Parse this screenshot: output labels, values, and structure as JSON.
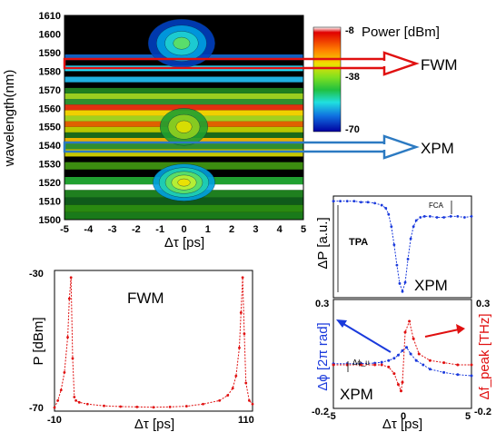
{
  "chart_data": [
    {
      "type": "heatmap",
      "title": "",
      "xlabel": "Δτ [ps]",
      "ylabel": "wavelength(nm)",
      "xlim": [
        -5,
        5
      ],
      "ylim": [
        1500,
        1610
      ],
      "x_ticks": [
        "-5",
        "-4",
        "-3",
        "-2",
        "-1",
        "0",
        "1",
        "2",
        "3",
        "4",
        "5"
      ],
      "y_ticks": [
        "1500",
        "1510",
        "1520",
        "1530",
        "1540",
        "1550",
        "1560",
        "1570",
        "1580",
        "1590",
        "1600",
        "1610"
      ],
      "colorbar": {
        "label": "Power [dBm]",
        "range": [
          -70,
          -8
        ],
        "ticks": [
          "-8",
          "-38",
          "-70"
        ]
      },
      "bands": [
        {
          "from": 1500,
          "to": 1504,
          "color": "#1a7a1a"
        },
        {
          "from": 1504,
          "to": 1508,
          "color": "#2a8a10"
        },
        {
          "from": 1508,
          "to": 1512,
          "color": "#0f5a1a"
        },
        {
          "from": 1512,
          "to": 1516,
          "color": "#1f7f1f"
        },
        {
          "from": 1516,
          "to": 1519,
          "color": "#ffffff"
        },
        {
          "from": 1519,
          "to": 1523,
          "color": "#20a030"
        },
        {
          "from": 1523,
          "to": 1527,
          "color": "#000000"
        },
        {
          "from": 1527,
          "to": 1531,
          "color": "#3c8c10"
        },
        {
          "from": 1531,
          "to": 1534,
          "color": "#000000"
        },
        {
          "from": 1534,
          "to": 1538,
          "color": "#c8c800"
        },
        {
          "from": 1538,
          "to": 1541,
          "color": "#2f8f2f"
        },
        {
          "from": 1541,
          "to": 1544,
          "color": "#e8b000"
        },
        {
          "from": 1544,
          "to": 1547,
          "color": "#1a6a1a"
        },
        {
          "from": 1547,
          "to": 1550,
          "color": "#b8c800"
        },
        {
          "from": 1550,
          "to": 1553,
          "color": "#e06000"
        },
        {
          "from": 1553,
          "to": 1556,
          "color": "#a0d020"
        },
        {
          "from": 1556,
          "to": 1559,
          "color": "#f0d000"
        },
        {
          "from": 1559,
          "to": 1562,
          "color": "#e03010"
        },
        {
          "from": 1562,
          "to": 1565,
          "color": "#2f8f2f"
        },
        {
          "from": 1565,
          "to": 1568,
          "color": "#9acd20"
        },
        {
          "from": 1568,
          "to": 1571,
          "color": "#1f7f1f"
        },
        {
          "from": 1571,
          "to": 1574,
          "color": "#000000"
        },
        {
          "from": 1574,
          "to": 1577,
          "color": "#20b0e0"
        },
        {
          "from": 1577,
          "to": 1580,
          "color": "#000000"
        },
        {
          "from": 1580,
          "to": 1583,
          "color": "#20e0ff"
        },
        {
          "from": 1583,
          "to": 1586,
          "color": "#000000"
        },
        {
          "from": 1586,
          "to": 1589,
          "color": "#1060c0"
        },
        {
          "from": 1589,
          "to": 1610,
          "color": "#000000"
        }
      ],
      "blobs": [
        {
          "cx": 0.0,
          "cy": 1520,
          "rx": 1.3,
          "ry": 10,
          "levels": [
            "#00a0e0",
            "#20d0b0",
            "#60e060",
            "#c0f030",
            "#f0e000"
          ]
        },
        {
          "cx": -0.1,
          "cy": 1595,
          "rx": 1.4,
          "ry": 13,
          "levels": [
            "#0040c0",
            "#00a0e0",
            "#20d0d0",
            "#60e060"
          ]
        },
        {
          "cx": 0.0,
          "cy": 1550,
          "rx": 1.0,
          "ry": 10,
          "levels": [
            "#20a030",
            "#90d020",
            "#e0e000"
          ]
        }
      ]
    },
    {
      "type": "line",
      "title": "",
      "xlabel": "Δτ [ps]",
      "ylabel": "P [dBm]",
      "xlim": [
        -10,
        110
      ],
      "ylim": [
        -70,
        -30
      ],
      "x_ticks": [
        "-10",
        "110"
      ],
      "y_ticks": [
        "-30",
        "-70"
      ],
      "annotation": "FWM",
      "series": [
        {
          "color": "#e01010",
          "x": [
            -10,
            -8,
            -6,
            -4,
            -2,
            -1,
            0,
            1,
            2,
            3,
            5,
            10,
            20,
            30,
            40,
            50,
            60,
            70,
            80,
            90,
            95,
            98,
            100,
            102,
            103,
            104,
            105,
            106,
            108,
            110
          ],
          "y": [
            -69,
            -67,
            -64,
            -59,
            -49,
            -38,
            -32,
            -55,
            -66,
            -67,
            -67.5,
            -68,
            -68.5,
            -68.7,
            -68.8,
            -68.9,
            -68.8,
            -68.6,
            -68.0,
            -67.0,
            -65.5,
            -63.5,
            -60,
            -52,
            -42,
            -32,
            -48,
            -62,
            -67,
            -68
          ]
        }
      ]
    },
    {
      "type": "line",
      "title": "",
      "xlabel": "",
      "ylabel": "ΔP [a.u.]",
      "xlim": [
        -5,
        5
      ],
      "ylim": [
        0,
        1
      ],
      "annotations": [
        "TPA",
        "FCA",
        "XPM"
      ],
      "series": [
        {
          "color": "#1a3adc",
          "x": [
            -5,
            -4.5,
            -4,
            -3.5,
            -3,
            -2.5,
            -2,
            -1.5,
            -1.2,
            -1,
            -0.8,
            -0.6,
            -0.4,
            -0.2,
            0,
            0.2,
            0.4,
            0.6,
            0.8,
            1,
            1.3,
            1.6,
            2,
            2.5,
            3,
            3.5,
            4,
            4.5,
            5
          ],
          "y": [
            0.95,
            0.95,
            0.95,
            0.95,
            0.94,
            0.94,
            0.93,
            0.91,
            0.88,
            0.82,
            0.7,
            0.52,
            0.32,
            0.14,
            0.06,
            0.15,
            0.38,
            0.58,
            0.7,
            0.76,
            0.79,
            0.8,
            0.8,
            0.79,
            0.79,
            0.8,
            0.8,
            0.79,
            0.8
          ]
        }
      ]
    },
    {
      "type": "line",
      "title": "",
      "xlabel": "Δτ [ps]",
      "ylabel": "Δϕ [2π rad]",
      "ylabel_right": "Δf_peak [THz]",
      "xlim": [
        -5,
        5
      ],
      "ylim": [
        -0.2,
        0.3
      ],
      "ylim_right": [
        -0.2,
        0.3
      ],
      "x_ticks": [
        "-5",
        "0",
        "5"
      ],
      "y_ticks": [
        "-0.2",
        "0.3"
      ],
      "y_ticks_right": [
        "-0.2",
        "0.3"
      ],
      "annotations": [
        "XPM",
        "Δϕ_u"
      ],
      "series": [
        {
          "color": "#1a3adc",
          "x": [
            -5,
            -4,
            -3,
            -2,
            -1.5,
            -1,
            -0.6,
            -0.3,
            0,
            0.3,
            0.6,
            1,
            1.5,
            2,
            3,
            4,
            5
          ],
          "y": [
            0.005,
            0.005,
            0.006,
            0.008,
            0.012,
            0.02,
            0.03,
            0.045,
            0.065,
            0.08,
            0.05,
            0.02,
            0.0,
            -0.02,
            -0.035,
            -0.045,
            -0.05
          ]
        },
        {
          "color": "#e01010",
          "x": [
            -5,
            -4,
            -3,
            -2,
            -1.5,
            -1,
            -0.6,
            -0.3,
            -0.1,
            0,
            0.2,
            0.5,
            0.8,
            1.2,
            2,
            3,
            4,
            5
          ],
          "y": [
            0.0,
            0.0,
            0.0,
            0.0,
            0.0,
            -0.01,
            -0.04,
            -0.09,
            -0.12,
            -0.08,
            0.15,
            0.2,
            0.12,
            0.05,
            0.02,
            0.01,
            0.0,
            0.0
          ]
        }
      ]
    }
  ],
  "callouts": {
    "fwm_label": "FWM",
    "xpm_label": "XPM",
    "fwm_color": "#e01010",
    "xpm_color": "#2c7ac2"
  }
}
